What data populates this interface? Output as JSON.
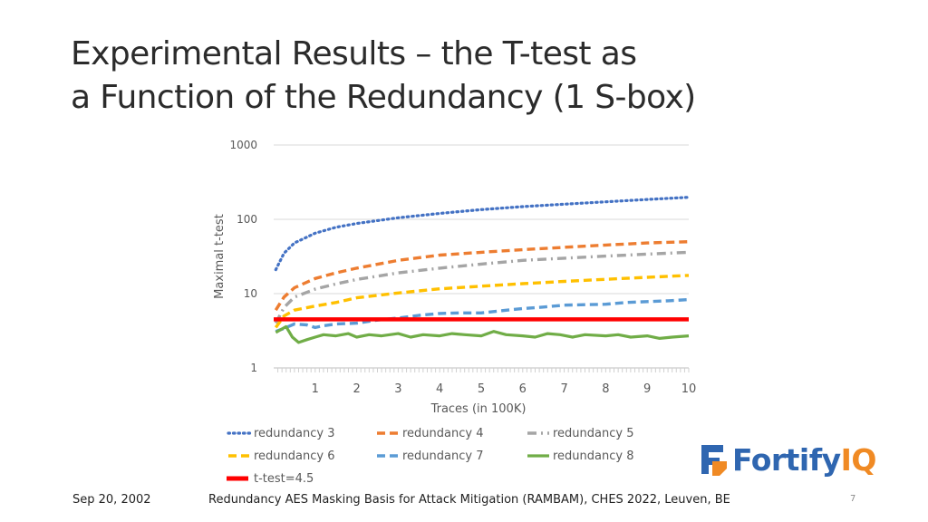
{
  "slide": {
    "title_line1": "Experimental Results – the T-test as",
    "title_line2": "a Function of the Redundancy (1 S-box)"
  },
  "footer": {
    "date": "Sep 20, 2002",
    "caption": "Redundancy AES Masking Basis for Attack Mitigation (RAMBAM), CHES 2022, Leuven, BE",
    "slide_number": "7"
  },
  "logo": {
    "text_main": "Fortify",
    "text_accent": "IQ",
    "colors": {
      "main": "#2f66b0",
      "accent": "#f08a24"
    }
  },
  "chart_data": {
    "type": "line",
    "xlabel": "Traces (in 100K)",
    "ylabel": "Maximal t-test",
    "yscale": "log",
    "ylim": [
      1,
      1000
    ],
    "xlim": [
      0,
      10
    ],
    "xticks": [
      1,
      2,
      3,
      4,
      5,
      6,
      7,
      8,
      9,
      10
    ],
    "yticks": [
      1,
      10,
      100,
      1000
    ],
    "ytick_labels": [
      "1",
      "10",
      "100",
      "1000"
    ],
    "grid": "horizontal",
    "legend_position": "bottom",
    "series": [
      {
        "name": "redundancy 3",
        "color": "#4472c4",
        "style": "dotted",
        "x": [
          0.05,
          0.25,
          0.5,
          1,
          1.5,
          2,
          3,
          4,
          5,
          6,
          7,
          8,
          9,
          10
        ],
        "values": [
          21,
          35,
          48,
          65,
          78,
          88,
          105,
          120,
          135,
          148,
          160,
          172,
          185,
          198
        ]
      },
      {
        "name": "redundancy 4",
        "color": "#ed7d31",
        "style": "dashed",
        "x": [
          0.05,
          0.25,
          0.5,
          1,
          1.5,
          2,
          3,
          4,
          5,
          6,
          7,
          8,
          9,
          10
        ],
        "values": [
          6,
          9,
          12,
          16,
          19,
          22,
          28,
          33,
          36,
          39,
          42,
          45,
          48,
          50
        ]
      },
      {
        "name": "redundancy 5",
        "color": "#a5a5a5",
        "style": "dashdot",
        "x": [
          0.05,
          0.25,
          0.5,
          1,
          1.5,
          2,
          3,
          4,
          5,
          6,
          7,
          8,
          9,
          10
        ],
        "values": [
          4,
          6.5,
          9,
          11.5,
          13.5,
          15.5,
          19,
          22,
          25,
          28,
          30,
          32,
          34,
          36
        ]
      },
      {
        "name": "redundancy 6",
        "color": "#ffc000",
        "style": "dashed",
        "x": [
          0.05,
          0.25,
          0.5,
          1,
          1.5,
          2,
          3,
          4,
          5,
          6,
          7,
          8,
          9,
          10
        ],
        "values": [
          3.5,
          5,
          6,
          6.8,
          7.6,
          8.8,
          10.2,
          11.6,
          12.6,
          13.6,
          14.6,
          15.6,
          16.6,
          17.6
        ]
      },
      {
        "name": "redundancy 7",
        "color": "#5b9bd5",
        "style": "dashed",
        "x": [
          0.05,
          0.25,
          0.5,
          0.8,
          1,
          1.2,
          1.5,
          2,
          2.5,
          3,
          3.5,
          4,
          4.5,
          5,
          5.5,
          6,
          6.5,
          7,
          7.5,
          8,
          8.5,
          9,
          9.5,
          10
        ],
        "values": [
          3.1,
          3.4,
          3.9,
          3.8,
          3.5,
          3.7,
          3.9,
          4.0,
          4.4,
          4.7,
          5.1,
          5.4,
          5.5,
          5.5,
          5.9,
          6.3,
          6.6,
          7.0,
          7.1,
          7.2,
          7.6,
          7.8,
          8.0,
          8.3
        ]
      },
      {
        "name": "redundancy 8",
        "color": "#70ad47",
        "style": "solid",
        "x": [
          0.05,
          0.3,
          0.45,
          0.6,
          0.8,
          1,
          1.2,
          1.5,
          1.8,
          2,
          2.3,
          2.6,
          3,
          3.3,
          3.6,
          4,
          4.3,
          4.6,
          5,
          5.3,
          5.6,
          6,
          6.3,
          6.6,
          6.9,
          7.2,
          7.5,
          8,
          8.3,
          8.6,
          9,
          9.3,
          9.6,
          10
        ],
        "values": [
          3.0,
          3.6,
          2.6,
          2.2,
          2.4,
          2.6,
          2.8,
          2.7,
          2.9,
          2.6,
          2.8,
          2.7,
          2.9,
          2.6,
          2.8,
          2.7,
          2.9,
          2.8,
          2.7,
          3.1,
          2.8,
          2.7,
          2.6,
          2.9,
          2.8,
          2.6,
          2.8,
          2.7,
          2.8,
          2.6,
          2.7,
          2.5,
          2.6,
          2.7
        ]
      },
      {
        "name": "t-test=4.5",
        "color": "#ff0000",
        "style": "solid",
        "x": [
          0,
          10
        ],
        "values": [
          4.5,
          4.5
        ]
      }
    ]
  }
}
